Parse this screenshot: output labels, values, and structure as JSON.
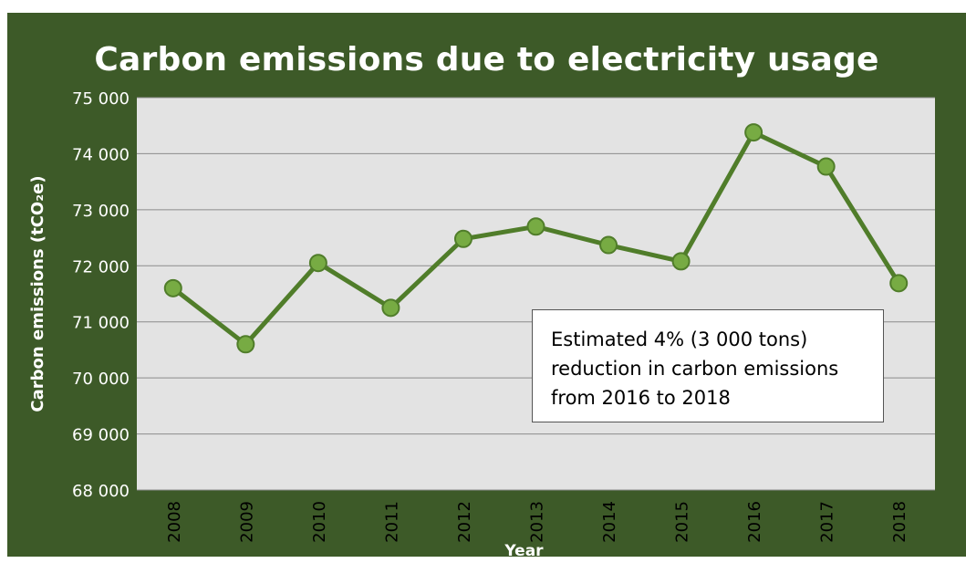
{
  "chart_data": {
    "type": "line",
    "title": "Carbon emissions due to electricity usage",
    "xlabel": "Year",
    "ylabel": "Carbon emissions (tCO₂e)",
    "categories": [
      "2008",
      "2009",
      "2010",
      "2011",
      "2012",
      "2013",
      "2014",
      "2015",
      "2016",
      "2017",
      "2018"
    ],
    "series": [
      {
        "values": [
          71600,
          70600,
          72050,
          71250,
          72480,
          72700,
          72370,
          72080,
          74380,
          73770,
          71690
        ]
      }
    ],
    "ylim": [
      68000,
      75000
    ],
    "yticks": [
      68000,
      69000,
      70000,
      71000,
      72000,
      73000,
      74000,
      75000
    ],
    "ytick_labels": [
      "68 000",
      "69 000",
      "70 000",
      "71 000",
      "72 000",
      "73 000",
      "74 000",
      "75 000"
    ],
    "grid": true,
    "annotation": "Estimated 4% (3 000 tons) reduction in carbon emissions from 2016 to 2018"
  },
  "colors": {
    "background": "#3d5a28",
    "plot_area": "#e3e3e3",
    "line": "#507d2a",
    "marker": "#77ab43"
  }
}
